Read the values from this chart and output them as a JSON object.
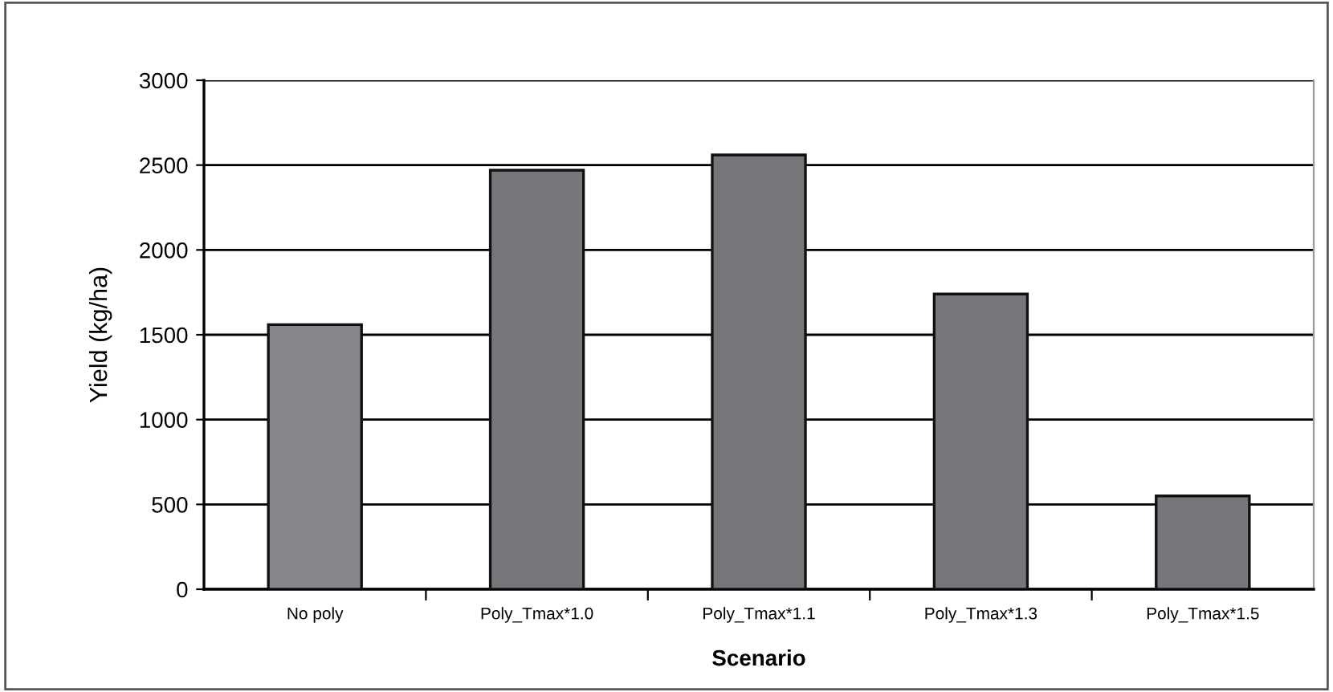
{
  "chart_data": {
    "type": "bar",
    "xlabel": "Scenario",
    "ylabel": "Yield (kg/ha)",
    "categories": [
      "No poly",
      "Poly_Tmax*1.0",
      "Poly_Tmax*1.1",
      "Poly_Tmax*1.3",
      "Poly_Tmax*1.5"
    ],
    "values": [
      1560,
      2470,
      2560,
      1740,
      550
    ],
    "colors": [
      "#858689",
      "#76777a",
      "#76777a",
      "#76777a",
      "#76777a"
    ],
    "ylim": [
      0,
      3000
    ],
    "yticks": [
      0,
      500,
      1000,
      1500,
      2000,
      2500,
      3000
    ],
    "grid": "y"
  }
}
